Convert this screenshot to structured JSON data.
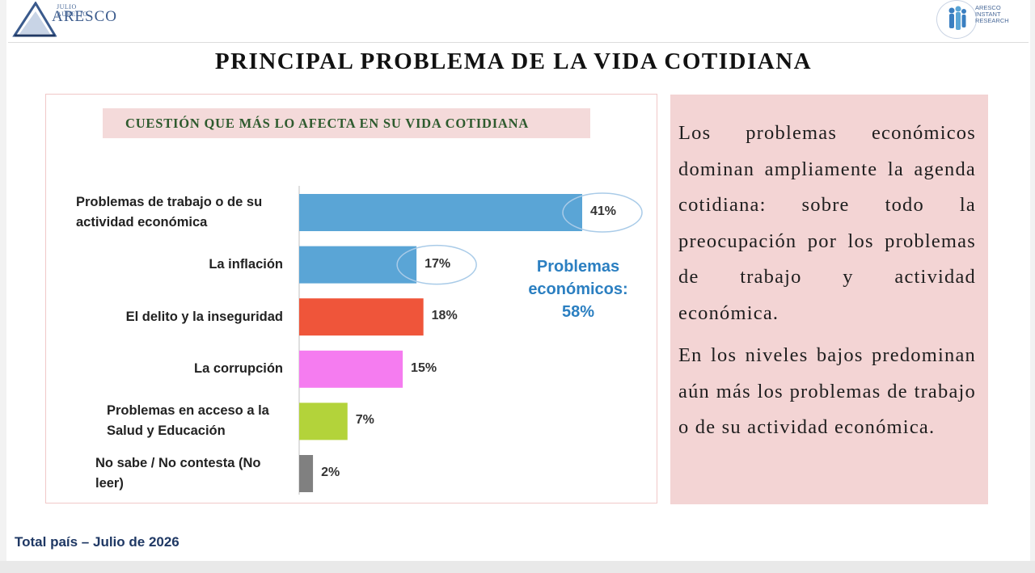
{
  "header": {
    "logo_left_small": "JULIO AURELIO",
    "logo_left_big": "ARESCO",
    "logo_right_lines": [
      "ARESCO",
      "INSTANT",
      "RESEARCH"
    ]
  },
  "title": "PRINCIPAL PROBLEMA DE LA VIDA COTIDIANA",
  "chart_data": {
    "type": "bar",
    "orientation": "horizontal",
    "title": "CUESTIÓN QUE MÁS LO AFECTA EN SU VIDA COTIDIANA",
    "categories": [
      [
        "Problemas de trabajo o de su",
        "actividad económica"
      ],
      [
        "La inflación"
      ],
      [
        "El delito y la inseguridad"
      ],
      [
        "La corrupción"
      ],
      [
        "Problemas en acceso a la",
        "Salud y Educación"
      ],
      [
        "No sabe / No contesta (No",
        "leer)"
      ]
    ],
    "values": [
      41,
      17,
      18,
      15,
      7,
      2
    ],
    "value_labels": [
      "41%",
      "17%",
      "18%",
      "15%",
      "7%",
      "2%"
    ],
    "colors": [
      "#5aa5d6",
      "#5aa5d6",
      "#ef553a",
      "#f57cf0",
      "#b3d33a",
      "#808080"
    ],
    "highlighted": [
      0,
      1
    ],
    "annotation": [
      "Problemas",
      "económicos:",
      "58%"
    ],
    "xlim": [
      0,
      45
    ]
  },
  "text_panel": {
    "paragraphs": [
      "Los problemas económicos dominan ampliamente la agenda cotidiana: sobre todo la preocupación por los problemas de trabajo y actividad económica.",
      "En los niveles bajos predominan aún más los problemas de trabajo o de su actividad económica."
    ]
  },
  "footer": "Total país – Julio de 2026"
}
